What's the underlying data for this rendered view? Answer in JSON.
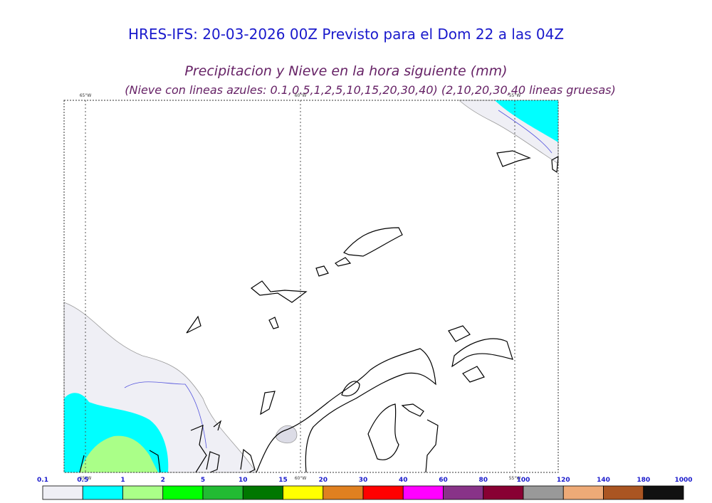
{
  "header": {
    "title": "HRES-IFS: 20-03-2026 00Z Previsto para el Dom 22 a las 04Z",
    "subtitle": "Precipitacion y Nieve en la hora siguiente (mm)",
    "note": "(Nieve con lineas azules: 0.1,0.5,1,2,5,10,15,20,30,40)  (2,10,20,30,40 lineas gruesas)"
  },
  "map": {
    "meridians": [
      "65°W",
      "60°W",
      "55°W"
    ]
  },
  "colorbar": {
    "labels": [
      0.1,
      0.5,
      1,
      2,
      5,
      10,
      15,
      20,
      30,
      40,
      60,
      80,
      100,
      120,
      140,
      180,
      1000
    ],
    "colors": [
      "#efeff5",
      "#00ffff",
      "#aaff88",
      "#00ff00",
      "#22bb33",
      "#007700",
      "#ffff00",
      "#e08020",
      "#ff0000",
      "#ff00ff",
      "#883388",
      "#880033",
      "#999999",
      "#eeaa77",
      "#aa5522",
      "#111111"
    ]
  }
}
